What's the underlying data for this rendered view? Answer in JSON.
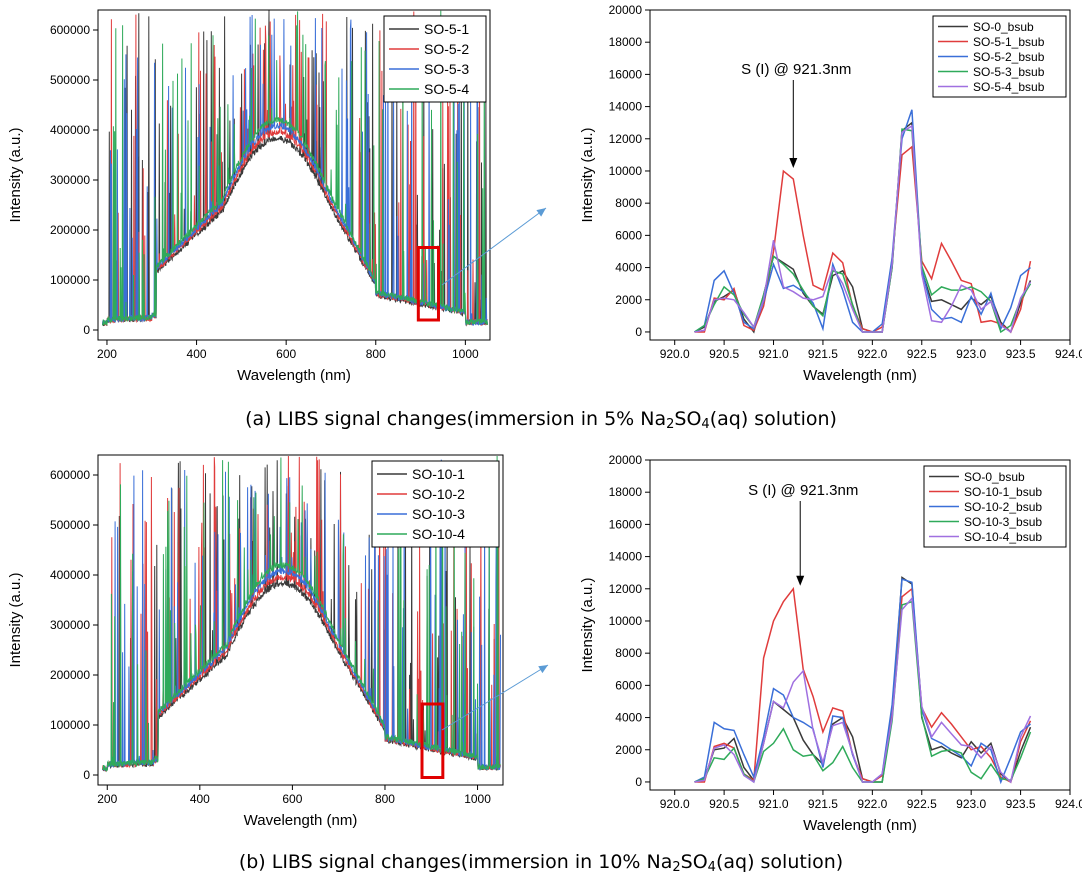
{
  "captions": [
    {
      "prefix": "(a) LIBS signal changes(immersion in 5% Na",
      "sub1": "2",
      "mid": "SO",
      "sub2": "4",
      "suffix": "(aq) solution)"
    },
    {
      "prefix": "(b) LIBS signal changes(immersion in 10% Na",
      "sub1": "2",
      "mid": "SO",
      "sub2": "4",
      "suffix": "(aq) solution)"
    }
  ],
  "chart_data": [
    {
      "id": "a-left",
      "type": "line",
      "xlabel": "Wavelength (nm)",
      "ylabel": "Intensity (a.u.)",
      "xlim": [
        180,
        1055
      ],
      "ylim": [
        -20000,
        640000
      ],
      "xticks": [
        200,
        400,
        600,
        800,
        1000
      ],
      "yticks": [
        0,
        100000,
        200000,
        300000,
        400000,
        500000,
        600000
      ],
      "legend_position": "top-right",
      "series": [
        {
          "name": "SO-5-1",
          "color": "#3a3a3a"
        },
        {
          "name": "SO-5-2",
          "color": "#e03c3c"
        },
        {
          "name": "SO-5-3",
          "color": "#3a6fd8"
        },
        {
          "name": "SO-5-4",
          "color": "#2faa5a"
        }
      ],
      "highlight": {
        "x": [
          895,
          940
        ],
        "y": [
          20000,
          165000
        ],
        "color": "#e00000"
      },
      "spectrum_seed": 7
    },
    {
      "id": "a-right",
      "type": "line",
      "xlabel": "Wavelength (nm)",
      "ylabel": "Intensity (a.u.)",
      "xlim": [
        919.75,
        924.0
      ],
      "ylim": [
        -500,
        20000
      ],
      "xticks": [
        920.0,
        920.5,
        921.0,
        921.5,
        922.0,
        922.5,
        923.0,
        923.5,
        924.0
      ],
      "yticks": [
        0,
        2000,
        4000,
        6000,
        8000,
        10000,
        12000,
        14000,
        16000,
        18000,
        20000
      ],
      "legend_position": "top-right",
      "annotation": {
        "text": "S (I) @ 921.3nm",
        "arrow_to": [
          921.2,
          10000
        ]
      },
      "x": [
        920.2,
        920.3,
        920.4,
        920.5,
        920.6,
        920.7,
        920.8,
        920.9,
        921.0,
        921.1,
        921.2,
        921.3,
        921.4,
        921.5,
        921.6,
        921.7,
        921.8,
        921.9,
        922.0,
        922.1,
        922.2,
        922.3,
        922.4,
        922.5,
        922.6,
        922.7,
        922.8,
        922.9,
        923.0,
        923.1,
        923.2,
        923.3,
        923.4,
        923.5,
        923.6
      ],
      "series": [
        {
          "name": "SO-0_bsub",
          "color": "#3a3a3a",
          "values": [
            0,
            300,
            1900,
            2200,
            2600,
            800,
            0,
            2300,
            4700,
            4300,
            3900,
            2400,
            1600,
            1100,
            3500,
            3800,
            2800,
            200,
            0,
            0,
            4000,
            12500,
            13000,
            3800,
            1900,
            2000,
            1700,
            1400,
            2100,
            1700,
            2200,
            600,
            0,
            1800,
            3200
          ]
        },
        {
          "name": "SO-5-1_bsub",
          "color": "#e03c3c",
          "values": [
            0,
            0,
            2100,
            2000,
            2700,
            400,
            100,
            1600,
            5000,
            10000,
            9500,
            6000,
            2900,
            2600,
            4900,
            4300,
            1600,
            200,
            0,
            300,
            4500,
            11000,
            11500,
            4400,
            3300,
            5500,
            4400,
            3200,
            3000,
            600,
            700,
            500,
            0,
            1400,
            4400
          ]
        },
        {
          "name": "SO-5-2_bsub",
          "color": "#3a6fd8",
          "values": [
            0,
            400,
            3200,
            3800,
            2400,
            600,
            200,
            1900,
            4200,
            2700,
            2900,
            2500,
            1800,
            200,
            4200,
            2600,
            600,
            0,
            0,
            500,
            4600,
            12000,
            13800,
            3900,
            1400,
            800,
            900,
            600,
            2200,
            1100,
            2400,
            200,
            1500,
            3500,
            4000
          ]
        },
        {
          "name": "SO-5-3_bsub",
          "color": "#2faa5a",
          "values": [
            0,
            400,
            1700,
            2800,
            2300,
            1100,
            300,
            2300,
            4700,
            4200,
            3600,
            2600,
            1600,
            1000,
            3800,
            3600,
            1700,
            0,
            0,
            0,
            4000,
            12600,
            12500,
            4100,
            2300,
            2800,
            2600,
            2600,
            2800,
            2500,
            1900,
            0,
            400,
            2000,
            3000
          ]
        },
        {
          "name": "SO-5-4_bsub",
          "color": "#a070e0",
          "values": [
            0,
            100,
            2000,
            2100,
            2000,
            1200,
            300,
            2000,
            5700,
            2800,
            2500,
            2100,
            2000,
            2200,
            4000,
            3000,
            1400,
            0,
            0,
            0,
            4200,
            12400,
            12800,
            3600,
            700,
            600,
            1600,
            2900,
            2600,
            1400,
            1900,
            400,
            0,
            2100,
            3100
          ]
        }
      ]
    },
    {
      "id": "b-left",
      "type": "line",
      "xlabel": "Wavelength (nm)",
      "ylabel": "Intensity (a.u.)",
      "xlim": [
        180,
        1055
      ],
      "ylim": [
        -20000,
        640000
      ],
      "xticks": [
        200,
        400,
        600,
        800,
        1000
      ],
      "yticks": [
        0,
        100000,
        200000,
        300000,
        400000,
        500000,
        600000
      ],
      "legend_position": "top-right",
      "series": [
        {
          "name": "SO-10-1",
          "color": "#3a3a3a"
        },
        {
          "name": "SO-10-2",
          "color": "#e03c3c"
        },
        {
          "name": "SO-10-3",
          "color": "#3a6fd8"
        },
        {
          "name": "SO-10-4",
          "color": "#2faa5a"
        }
      ],
      "highlight": {
        "x": [
          880,
          925
        ],
        "y": [
          -5000,
          142000
        ],
        "color": "#e00000"
      },
      "spectrum_seed": 19
    },
    {
      "id": "b-right",
      "type": "line",
      "xlabel": "Wavelength (nm)",
      "ylabel": "Intensity (a.u.)",
      "xlim": [
        919.75,
        924.0
      ],
      "ylim": [
        -500,
        20000
      ],
      "xticks": [
        920.0,
        920.5,
        921.0,
        921.5,
        922.0,
        922.5,
        923.0,
        923.5,
        924.0
      ],
      "yticks": [
        0,
        2000,
        4000,
        6000,
        8000,
        10000,
        12000,
        14000,
        16000,
        18000,
        20000
      ],
      "legend_position": "top-right",
      "annotation": {
        "text": "S (I) @ 921.3nm",
        "arrow_to": [
          921.27,
          12000
        ]
      },
      "x": [
        920.2,
        920.3,
        920.4,
        920.5,
        920.6,
        920.7,
        920.8,
        920.9,
        921.0,
        921.1,
        921.2,
        921.3,
        921.4,
        921.5,
        921.6,
        921.7,
        921.8,
        921.9,
        922.0,
        922.1,
        922.2,
        922.3,
        922.4,
        922.5,
        922.6,
        922.7,
        922.8,
        922.9,
        923.0,
        923.1,
        923.2,
        923.3,
        923.4,
        923.5,
        923.6
      ],
      "series": [
        {
          "name": "SO-0_bsub",
          "color": "#3a3a3a",
          "values": [
            0,
            200,
            2000,
            2100,
            2700,
            900,
            100,
            2400,
            5000,
            4500,
            4000,
            2600,
            1700,
            1100,
            3600,
            4000,
            2800,
            200,
            0,
            0,
            4200,
            12700,
            12300,
            4000,
            2000,
            2200,
            1800,
            1500,
            2500,
            1800,
            2400,
            500,
            0,
            1900,
            3400
          ]
        },
        {
          "name": "SO-10-1_bsub",
          "color": "#e03c3c",
          "values": [
            0,
            0,
            2200,
            2400,
            2100,
            500,
            100,
            7700,
            10000,
            11200,
            12000,
            7000,
            5300,
            3100,
            4600,
            4400,
            1700,
            200,
            0,
            400,
            4500,
            11500,
            12000,
            4600,
            3400,
            4300,
            3600,
            2800,
            2000,
            2200,
            1500,
            300,
            0,
            2500,
            3800
          ]
        },
        {
          "name": "SO-10-2_bsub",
          "color": "#3a6fd8",
          "values": [
            0,
            300,
            3700,
            3300,
            3200,
            1700,
            300,
            2800,
            5800,
            5400,
            4000,
            3700,
            3300,
            900,
            4100,
            4000,
            1700,
            0,
            0,
            500,
            4800,
            12600,
            12400,
            4500,
            2700,
            2400,
            2000,
            1600,
            1000,
            2400,
            2000,
            0,
            1500,
            3100,
            3600
          ]
        },
        {
          "name": "SO-10-3_bsub",
          "color": "#2faa5a",
          "values": [
            0,
            200,
            1500,
            1400,
            2100,
            500,
            0,
            1900,
            2400,
            3300,
            2000,
            1600,
            1700,
            700,
            1200,
            2200,
            900,
            0,
            0,
            0,
            3800,
            11000,
            11200,
            4100,
            1600,
            1900,
            2000,
            1800,
            600,
            200,
            1100,
            200,
            100,
            1500,
            3100
          ]
        },
        {
          "name": "SO-10-4_bsub",
          "color": "#a070e0",
          "values": [
            0,
            100,
            2100,
            2300,
            1700,
            400,
            0,
            2400,
            5000,
            4600,
            6200,
            6900,
            3200,
            1200,
            3500,
            3700,
            1800,
            0,
            0,
            500,
            4000,
            10700,
            11400,
            4700,
            2800,
            3700,
            3000,
            2300,
            2200,
            1500,
            2200,
            600,
            0,
            2800,
            4100
          ]
        }
      ]
    }
  ]
}
